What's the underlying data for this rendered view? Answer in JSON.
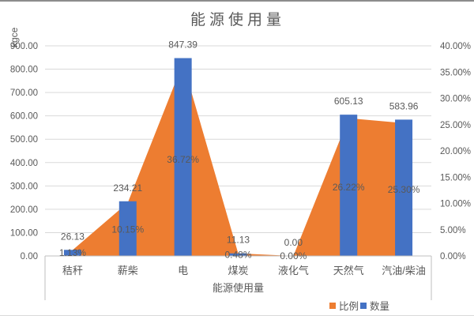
{
  "chart_data": {
    "type": "combo",
    "title": "能源使用量",
    "left_axis": {
      "title": "kgce",
      "min": 0,
      "max": 900,
      "step": 100,
      "tick_labels": [
        "0.00",
        "100.00",
        "200.00",
        "300.00",
        "400.00",
        "500.00",
        "600.00",
        "700.00",
        "800.00",
        "900.00"
      ]
    },
    "right_axis": {
      "min": 0,
      "max": 40,
      "step": 5,
      "tick_labels": [
        "0.00%",
        "5.00%",
        "10.00%",
        "15.00%",
        "20.00%",
        "25.00%",
        "30.00%",
        "35.00%",
        "40.00%"
      ]
    },
    "categories": [
      "秸秆",
      "薪柴",
      "电",
      "煤炭",
      "液化气",
      "天然气",
      "汽油/柴油"
    ],
    "axis_group_label": "能源使用量",
    "series": [
      {
        "name": "比例",
        "type": "area",
        "axis": "right",
        "color": "#ED7D31",
        "values": [
          1.13,
          10.15,
          36.72,
          0.48,
          0.0,
          26.22,
          25.3
        ],
        "labels": [
          "1.13%",
          "10.15%",
          "36.72%",
          "0.48%",
          "0.00%",
          "26.22%",
          "25.30%"
        ]
      },
      {
        "name": "数量",
        "type": "bar",
        "axis": "left",
        "color": "#4472C4",
        "values": [
          26.13,
          234.21,
          847.39,
          11.13,
          0.0,
          605.13,
          583.96
        ],
        "labels": [
          "26.13",
          "234.21",
          "847.39",
          "11.13",
          "0.00",
          "605.13",
          "583.96"
        ]
      }
    ],
    "legend": {
      "position": "bottom-right",
      "entries": [
        {
          "label": "比例",
          "color": "#ED7D31"
        },
        {
          "label": "数量",
          "color": "#4472C4"
        }
      ]
    },
    "grid": "horizontal",
    "colors": {
      "text": "#595959",
      "gridline": "#D9D9D9",
      "axis_line": "#BFBFBF"
    }
  }
}
